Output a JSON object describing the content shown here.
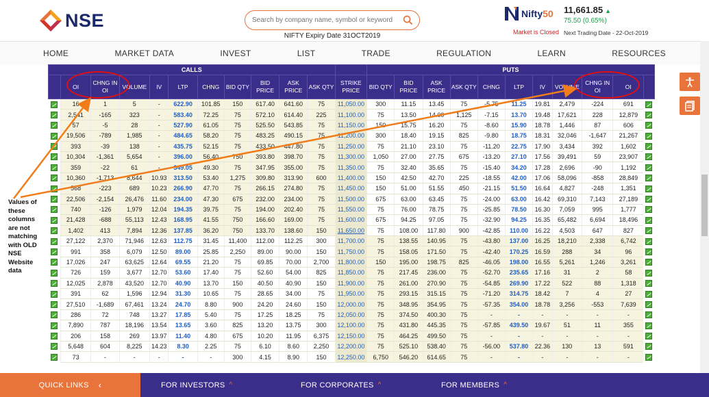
{
  "header": {
    "logo_text": "NSE",
    "search_placeholder": "Search by company name, symbol or keyword",
    "expiry_text": "NIFTY  Expiry Date 31OCT2019",
    "index_name_a": "Nifty",
    "index_name_b": "50",
    "market_status": "Market is Closed",
    "index_value": "11,661.85",
    "index_change": "75.50 (0.65%)",
    "next_trading": "Next Trading Date - 22-Oct-2019"
  },
  "nav": [
    "HOME",
    "MARKET DATA",
    "INVEST",
    "LIST",
    "TRADE",
    "REGULATION",
    "LEARN",
    "RESOURCES"
  ],
  "table": {
    "calls_label": "CALLS",
    "puts_label": "PUTS",
    "call_headers": [
      "OI",
      "CHNG IN OI",
      "VOLUME",
      "IV",
      "LTP",
      "CHNG",
      "BID QTY",
      "BID PRICE",
      "ASK PRICE",
      "ASK QTY"
    ],
    "strike_header": "STRIKE PRICE",
    "put_headers": [
      "BID QTY",
      "BID PRICE",
      "ASK PRICE",
      "ASK QTY",
      "CHNG",
      "LTP",
      "IV",
      "VOLUME",
      "CHNG IN OI",
      "OI"
    ],
    "rows": [
      {
        "c": [
          "16",
          "1",
          "5",
          "-",
          "622.90",
          "101.85",
          "150",
          "617.40",
          "641.60",
          "75"
        ],
        "s": "11,050.00",
        "p": [
          "300",
          "11.15",
          "13.45",
          "75",
          "-5.75",
          "11.25",
          "19.81",
          "2,479",
          "-224",
          "691"
        ]
      },
      {
        "c": [
          "2,541",
          "-165",
          "323",
          "-",
          "583.40",
          "72.25",
          "75",
          "572.10",
          "614.40",
          "225"
        ],
        "s": "11,100.00",
        "p": [
          "75",
          "13.50",
          "14.00",
          "1,125",
          "-7.15",
          "13.70",
          "19.48",
          "17,621",
          "228",
          "12,879"
        ]
      },
      {
        "c": [
          "57",
          "-5",
          "28",
          "-",
          "527.90",
          "61.05",
          "75",
          "525.50",
          "543.85",
          "75"
        ],
        "s": "11,150.00",
        "p": [
          "150",
          "15.75",
          "16.20",
          "75",
          "-8.60",
          "15.90",
          "18.78",
          "1,446",
          "87",
          "606"
        ]
      },
      {
        "c": [
          "19,506",
          "-789",
          "1,985",
          "-",
          "484.65",
          "58.20",
          "75",
          "483.25",
          "490.15",
          "75"
        ],
        "s": "11,200.00",
        "p": [
          "300",
          "18.40",
          "19.15",
          "825",
          "-9.80",
          "18.75",
          "18.31",
          "32,046",
          "-1,647",
          "21,267"
        ]
      },
      {
        "c": [
          "393",
          "-39",
          "138",
          "-",
          "435.75",
          "52.15",
          "75",
          "433.50",
          "447.80",
          "75"
        ],
        "s": "11,250.00",
        "p": [
          "75",
          "21.10",
          "23.10",
          "75",
          "-11.20",
          "22.75",
          "17.90",
          "3,434",
          "392",
          "1,602"
        ]
      },
      {
        "c": [
          "10,304",
          "-1,361",
          "5,654",
          "-",
          "396.00",
          "56.40",
          "750",
          "393.80",
          "398.70",
          "75"
        ],
        "s": "11,300.00",
        "p": [
          "1,050",
          "27.00",
          "27.75",
          "675",
          "-13.20",
          "27.10",
          "17.56",
          "39,491",
          "59",
          "23,907"
        ]
      },
      {
        "c": [
          "359",
          "-22",
          "61",
          "-",
          "349.05",
          "49.30",
          "75",
          "347.95",
          "355.00",
          "75"
        ],
        "s": "11,350.00",
        "p": [
          "75",
          "32.40",
          "35.65",
          "75",
          "-15.40",
          "34.20",
          "17.28",
          "2,696",
          "-90",
          "1,192"
        ]
      },
      {
        "c": [
          "10,360",
          "-1,713",
          "8,644",
          "10.93",
          "313.50",
          "53.40",
          "1,275",
          "309.80",
          "313.90",
          "600"
        ],
        "s": "11,400.00",
        "p": [
          "150",
          "42.50",
          "42.70",
          "225",
          "-18.55",
          "42.00",
          "17.06",
          "58,096",
          "-858",
          "28,849"
        ]
      },
      {
        "c": [
          "568",
          "-223",
          "689",
          "10.23",
          "266.90",
          "47.70",
          "75",
          "266.15",
          "274.80",
          "75"
        ],
        "s": "11,450.00",
        "p": [
          "150",
          "51.00",
          "51.55",
          "450",
          "-21.15",
          "51.50",
          "16.64",
          "4,827",
          "-248",
          "1,351"
        ]
      },
      {
        "c": [
          "22,506",
          "-2,154",
          "26,476",
          "11.60",
          "234.00",
          "47.30",
          "675",
          "232.00",
          "234.00",
          "75"
        ],
        "s": "11,500.00",
        "p": [
          "675",
          "63.00",
          "63.45",
          "75",
          "-24.00",
          "63.00",
          "16.42",
          "69,310",
          "7,143",
          "27,189"
        ]
      },
      {
        "c": [
          "740",
          "-126",
          "1,979",
          "12.04",
          "194.35",
          "39.75",
          "75",
          "194.00",
          "202.40",
          "75"
        ],
        "s": "11,550.00",
        "p": [
          "75",
          "76.00",
          "78.75",
          "75",
          "-25.85",
          "78.50",
          "16.30",
          "7,059",
          "995",
          "1,777"
        ]
      },
      {
        "c": [
          "21,428",
          "-688",
          "55,113",
          "12.43",
          "168.95",
          "41.55",
          "750",
          "166.60",
          "169.00",
          "75"
        ],
        "s": "11,600.00",
        "p": [
          "675",
          "94.25",
          "97.05",
          "75",
          "-32.90",
          "94.25",
          "16.35",
          "65,482",
          "6,694",
          "18,496"
        ]
      },
      {
        "c": [
          "1,402",
          "413",
          "7,894",
          "12.36",
          "137.85",
          "36.20",
          "750",
          "133.70",
          "138.60",
          "150"
        ],
        "s": "11,650.00",
        "p": [
          "75",
          "108.00",
          "117.80",
          "900",
          "-42.85",
          "110.00",
          "16.22",
          "4,503",
          "647",
          "827"
        ]
      },
      {
        "c": [
          "27,122",
          "2,370",
          "71,946",
          "12.63",
          "112.75",
          "31.45",
          "11,400",
          "112.00",
          "112.25",
          "300"
        ],
        "s": "11,700.00",
        "p": [
          "75",
          "138.55",
          "140.95",
          "75",
          "-43.80",
          "137.00",
          "16.25",
          "18,210",
          "2,338",
          "6,742"
        ]
      },
      {
        "c": [
          "991",
          "358",
          "6,079",
          "12.50",
          "89.00",
          "25.85",
          "2,250",
          "89.00",
          "90.00",
          "150"
        ],
        "s": "11,750.00",
        "p": [
          "75",
          "158.05",
          "171.50",
          "75",
          "-42.40",
          "170.25",
          "16.59",
          "288",
          "34",
          "96"
        ]
      },
      {
        "c": [
          "17,026",
          "247",
          "63,625",
          "12.64",
          "69.55",
          "21.20",
          "75",
          "69.85",
          "70.00",
          "2,700"
        ],
        "s": "11,800.00",
        "p": [
          "150",
          "195.00",
          "198.75",
          "825",
          "-46.05",
          "198.00",
          "16.55",
          "5,261",
          "1,246",
          "3,261"
        ]
      },
      {
        "c": [
          "726",
          "159",
          "3,677",
          "12.70",
          "53.60",
          "17.40",
          "75",
          "52.60",
          "54.00",
          "825"
        ],
        "s": "11,850.00",
        "p": [
          "75",
          "217.45",
          "236.00",
          "75",
          "-52.70",
          "235.65",
          "17.16",
          "31",
          "2",
          "58"
        ]
      },
      {
        "c": [
          "12,025",
          "2,878",
          "43,520",
          "12.70",
          "40.90",
          "13.70",
          "150",
          "40.50",
          "40.90",
          "150"
        ],
        "s": "11,900.00",
        "p": [
          "75",
          "261.00",
          "270.90",
          "75",
          "-54.85",
          "269.90",
          "17.22",
          "522",
          "88",
          "1,318"
        ]
      },
      {
        "c": [
          "391",
          "62",
          "1,596",
          "12.94",
          "31.30",
          "10.65",
          "75",
          "28.65",
          "34.00",
          "75"
        ],
        "s": "11,950.00",
        "p": [
          "75",
          "293.15",
          "315.15",
          "75",
          "-71.20",
          "314.75",
          "18.42",
          "7",
          "4",
          "27"
        ]
      },
      {
        "c": [
          "27,510",
          "-1,689",
          "67,461",
          "13.24",
          "24.70",
          "8.80",
          "900",
          "24.20",
          "24.60",
          "150"
        ],
        "s": "12,000.00",
        "p": [
          "75",
          "348.95",
          "354.95",
          "75",
          "-57.35",
          "354.00",
          "18.78",
          "3,256",
          "-553",
          "7,639"
        ]
      },
      {
        "c": [
          "286",
          "72",
          "748",
          "13.27",
          "17.85",
          "5.40",
          "75",
          "17.25",
          "18.25",
          "75"
        ],
        "s": "12,050.00",
        "p": [
          "75",
          "374.50",
          "400.30",
          "75",
          "-",
          "-",
          "-",
          "-",
          "-",
          "-"
        ]
      },
      {
        "c": [
          "7,890",
          "787",
          "18,196",
          "13.54",
          "13.65",
          "3.60",
          "825",
          "13.20",
          "13.75",
          "300"
        ],
        "s": "12,100.00",
        "p": [
          "75",
          "431.80",
          "445.35",
          "75",
          "-57.85",
          "439.50",
          "19.67",
          "51",
          "11",
          "355"
        ]
      },
      {
        "c": [
          "206",
          "158",
          "269",
          "13.97",
          "11.40",
          "4.80",
          "675",
          "10.20",
          "11.95",
          "6,375"
        ],
        "s": "12,150.00",
        "p": [
          "75",
          "464.25",
          "499.50",
          "75",
          "-",
          "-",
          "-",
          "-",
          "-",
          "-"
        ]
      },
      {
        "c": [
          "5,648",
          "604",
          "8,225",
          "14.23",
          "8.30",
          "2.25",
          "75",
          "6.10",
          "8.60",
          "2,250"
        ],
        "s": "12,200.00",
        "p": [
          "75",
          "525.10",
          "538.40",
          "75",
          "-56.00",
          "537.80",
          "22.36",
          "130",
          "13",
          "591"
        ]
      },
      {
        "c": [
          "73",
          "-",
          "-",
          "-",
          "-",
          "-",
          "300",
          "4.15",
          "8.90",
          "150"
        ],
        "s": "12,250.00",
        "p": [
          "6,750",
          "546.20",
          "614.65",
          "75",
          "-",
          "-",
          "-",
          "-",
          "-",
          "-"
        ]
      }
    ]
  },
  "annotation": "Values of these columns are not matching with OLD NSE Website data",
  "footer": {
    "quick_links": "QUICK LINKS",
    "investors": "FOR INVESTORS",
    "corporates": "FOR CORPORATES",
    "members": "FOR MEMBERS"
  }
}
